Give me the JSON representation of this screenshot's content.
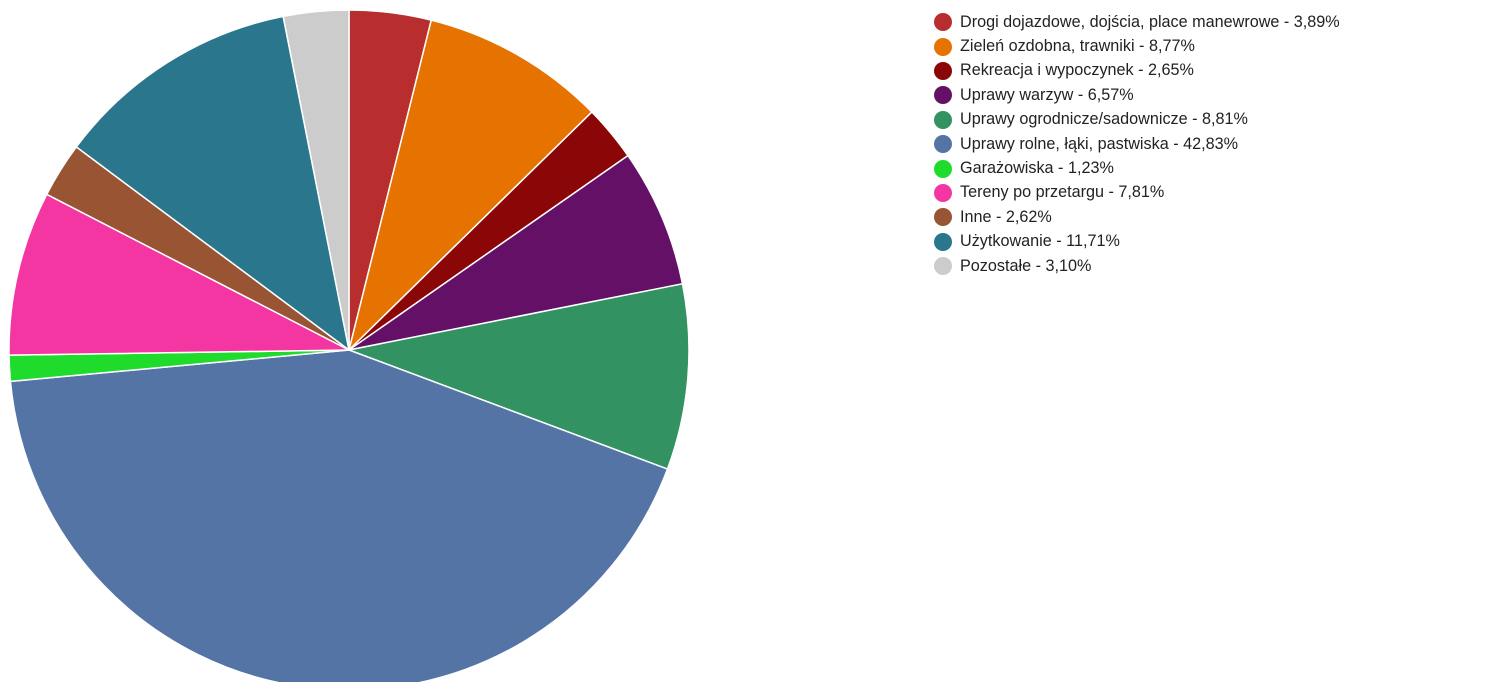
{
  "chart_data": {
    "type": "pie",
    "title": "",
    "start_angle_deg": 0,
    "direction": "clockwise",
    "legend_position": "right",
    "slices": [
      {
        "label": "Drogi dojazdowe, dojścia, place manewrowe - 3,89%",
        "value": 3.89,
        "color": "#b82e2e"
      },
      {
        "label": "Zieleń ozdobna, trawniki - 8,77%",
        "value": 8.77,
        "color": "#e67300"
      },
      {
        "label": "Rekreacja i wypoczynek - 2,65%",
        "value": 2.65,
        "color": "#8b0707"
      },
      {
        "label": "Uprawy warzyw - 6,57%",
        "value": 6.57,
        "color": "#651067"
      },
      {
        "label": "Uprawy ogrodnicze/sadownicze - 8,81%",
        "value": 8.81,
        "color": "#329262"
      },
      {
        "label": "Uprawy rolne, łąki, pastwiska - 42,83%",
        "value": 42.83,
        "color": "#5574a6"
      },
      {
        "label": "Garażowiska - 1,23%",
        "value": 1.23,
        "color": "#1fdc2c"
      },
      {
        "label": "Tereny po przetargu - 7,81%",
        "value": 7.81,
        "color": "#f436a2"
      },
      {
        "label": "Inne - 2,62%",
        "value": 2.62,
        "color": "#995533"
      },
      {
        "label": "Użytkowanie - 11,71%",
        "value": 11.71,
        "color": "#2a778d"
      },
      {
        "label": "Pozostałe - 3,10%",
        "value": 3.1,
        "color": "#cccccc"
      }
    ]
  }
}
